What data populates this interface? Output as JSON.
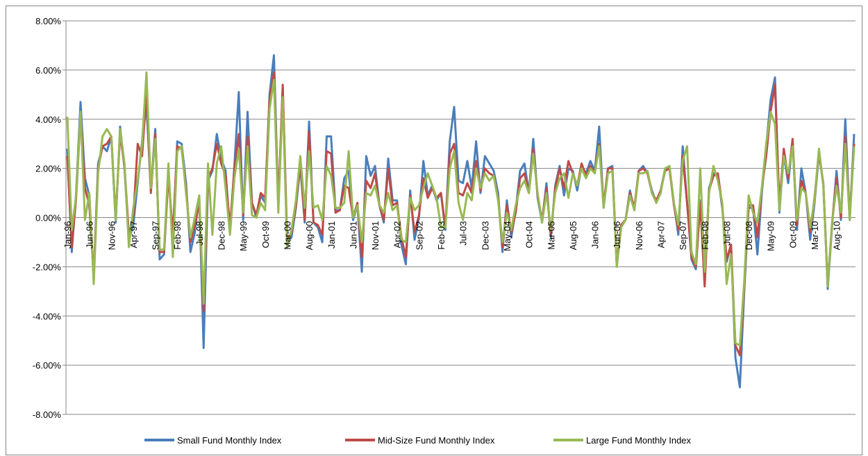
{
  "chart_data": {
    "type": "line",
    "categories": [
      "Jan-96",
      null,
      null,
      null,
      null,
      "Jun-96",
      null,
      null,
      null,
      null,
      "Nov-96",
      null,
      null,
      null,
      null,
      "Apr-97",
      null,
      null,
      null,
      null,
      "Sep-97",
      null,
      null,
      null,
      null,
      "Feb-98",
      null,
      null,
      null,
      null,
      "Jul-98",
      null,
      null,
      null,
      null,
      "Dec-98",
      null,
      null,
      null,
      null,
      "May-99",
      null,
      null,
      null,
      null,
      "Oct-99",
      null,
      null,
      null,
      null,
      "Mar-00",
      null,
      null,
      null,
      null,
      "Aug-00",
      null,
      null,
      null,
      null,
      "Jan-01",
      null,
      null,
      null,
      null,
      "Jun-01",
      null,
      null,
      null,
      null,
      "Nov-01",
      null,
      null,
      null,
      null,
      "Apr-02",
      null,
      null,
      null,
      null,
      "Sep-02",
      null,
      null,
      null,
      null,
      "Feb-03",
      null,
      null,
      null,
      null,
      "Jul-03",
      null,
      null,
      null,
      null,
      "Dec-03",
      null,
      null,
      null,
      null,
      "May-04",
      null,
      null,
      null,
      null,
      "Oct-04",
      null,
      null,
      null,
      null,
      "Mar-05",
      null,
      null,
      null,
      null,
      "Aug-05",
      null,
      null,
      null,
      null,
      "Jan-06",
      null,
      null,
      null,
      null,
      "Jun-06",
      null,
      null,
      null,
      null,
      "Nov-06",
      null,
      null,
      null,
      null,
      "Apr-07",
      null,
      null,
      null,
      null,
      "Sep-07",
      null,
      null,
      null,
      null,
      "Feb-08",
      null,
      null,
      null,
      null,
      "Jul-08",
      null,
      null,
      null,
      null,
      "Dec-08",
      null,
      null,
      null,
      null,
      "May-09",
      null,
      null,
      null,
      null,
      "Oct-09",
      null,
      null,
      null,
      null,
      "Mar-10",
      null,
      null,
      null,
      null,
      "Aug-10",
      null,
      null,
      null,
      null
    ],
    "series": [
      {
        "name": "Small Fund Monthly Index",
        "color": "#4a7ebb",
        "values": [
          2.8,
          -1.4,
          1.0,
          4.7,
          1.6,
          0.9,
          -2.5,
          2.2,
          2.9,
          2.7,
          3.3,
          -0.2,
          3.7,
          2.0,
          -0.9,
          -0.3,
          1.4,
          3.1,
          4.6,
          1.1,
          3.6,
          -1.7,
          -1.5,
          1.9,
          -0.9,
          3.1,
          3.0,
          1.4,
          -1.4,
          -0.6,
          0.9,
          -5.3,
          1.5,
          1.9,
          3.4,
          2.4,
          1.9,
          -0.6,
          2.1,
          5.1,
          -0.1,
          4.3,
          0.6,
          0.0,
          0.9,
          0.6,
          5.0,
          6.6,
          0.4,
          5.3,
          -1.0,
          -0.8,
          0.4,
          2.1,
          -0.2,
          3.9,
          -0.2,
          -0.4,
          -1.0,
          3.3,
          3.3,
          0.3,
          0.3,
          1.6,
          1.9,
          -0.1,
          0.5,
          -2.2,
          2.5,
          1.7,
          2.1,
          0.5,
          -0.2,
          2.4,
          0.7,
          0.7,
          -1.1,
          -1.9,
          1.1,
          -0.9,
          0.0,
          2.3,
          0.9,
          1.3,
          0.7,
          1.0,
          -0.5,
          3.1,
          4.5,
          1.5,
          1.4,
          2.3,
          1.2,
          3.1,
          1.0,
          2.5,
          2.2,
          1.9,
          1.0,
          -1.4,
          0.7,
          -0.8,
          0.3,
          1.9,
          2.2,
          1.0,
          3.2,
          0.8,
          -0.2,
          1.4,
          -0.8,
          1.3,
          2.1,
          0.9,
          2.0,
          1.9,
          1.1,
          2.1,
          1.8,
          2.3,
          1.9,
          3.7,
          0.4,
          2.0,
          2.1,
          -2.0,
          -0.3,
          -0.1,
          1.1,
          0.3,
          1.9,
          2.1,
          1.8,
          1.1,
          0.6,
          1.1,
          2.0,
          2.0,
          0.6,
          -0.7,
          2.9,
          0.6,
          -1.7,
          -2.1,
          0.7,
          -2.7,
          1.2,
          1.8,
          1.7,
          0.4,
          -1.8,
          -1.1,
          -5.7,
          -6.9,
          -3.0,
          0.4,
          0.4,
          -1.5,
          1.0,
          2.9,
          4.8,
          5.7,
          0.2,
          2.6,
          1.4,
          3.1,
          -0.5,
          2.0,
          1.0,
          -0.9,
          0.6,
          2.6,
          1.4,
          -2.9,
          -0.3,
          1.9,
          -0.1,
          4.0,
          -0.1,
          3.4
        ]
      },
      {
        "name": "Mid-Size Fund Monthly Index",
        "color": "#be4b48",
        "values": [
          2.5,
          -1.2,
          0.8,
          4.2,
          1.2,
          0.5,
          -2.4,
          2.0,
          2.9,
          3.0,
          3.3,
          0.0,
          3.4,
          2.1,
          -0.7,
          0.0,
          3.0,
          2.5,
          5.1,
          1.0,
          3.4,
          -1.4,
          -1.4,
          1.7,
          -0.7,
          2.9,
          2.8,
          1.2,
          -1.0,
          -0.3,
          0.6,
          -3.8,
          1.6,
          2.0,
          3.0,
          2.2,
          1.7,
          -0.4,
          2.0,
          3.4,
          0.1,
          3.3,
          0.6,
          0.1,
          1.0,
          0.8,
          4.8,
          5.9,
          0.5,
          5.4,
          -0.9,
          -0.6,
          0.5,
          2.3,
          -0.1,
          3.5,
          -0.2,
          -0.3,
          -0.7,
          2.7,
          2.6,
          0.2,
          0.3,
          1.3,
          1.2,
          0.0,
          0.6,
          -1.6,
          1.5,
          1.2,
          1.8,
          0.5,
          -0.1,
          2.0,
          0.5,
          0.6,
          -0.8,
          -1.6,
          0.9,
          -0.6,
          0.1,
          1.6,
          0.8,
          1.2,
          0.8,
          1.0,
          -0.4,
          2.6,
          3.0,
          1.0,
          0.9,
          1.4,
          1.0,
          2.3,
          1.1,
          2.0,
          1.8,
          1.7,
          0.8,
          -1.2,
          0.5,
          -0.6,
          0.2,
          1.6,
          1.8,
          1.0,
          2.8,
          0.9,
          -0.1,
          1.2,
          -0.7,
          1.2,
          2.0,
          1.2,
          2.3,
          1.8,
          1.3,
          2.2,
          1.7,
          2.1,
          1.8,
          3.0,
          0.5,
          2.0,
          2.0,
          -1.9,
          -0.3,
          -0.1,
          1.0,
          0.4,
          1.9,
          2.0,
          1.8,
          1.0,
          0.7,
          1.1,
          1.9,
          2.0,
          0.5,
          -0.5,
          2.5,
          0.6,
          -1.6,
          -2.0,
          0.6,
          -2.8,
          1.1,
          1.7,
          1.8,
          0.5,
          -1.7,
          -1.1,
          -5.2,
          -5.6,
          -2.8,
          0.5,
          0.5,
          -0.8,
          1.2,
          2.5,
          4.3,
          5.4,
          0.5,
          2.8,
          1.6,
          3.2,
          -0.3,
          1.5,
          1.0,
          -0.6,
          0.8,
          2.7,
          1.3,
          -2.7,
          -0.2,
          1.6,
          0.0,
          3.3,
          0.0,
          3.0
        ]
      },
      {
        "name": "Large Fund Monthly Index",
        "color": "#98b954",
        "values": [
          4.1,
          -0.5,
          0.9,
          4.3,
          -0.1,
          1.0,
          -2.7,
          1.8,
          3.3,
          3.6,
          3.3,
          -0.1,
          3.6,
          2.2,
          -1.2,
          0.4,
          1.5,
          3.0,
          5.9,
          1.2,
          3.2,
          -1.3,
          -1.3,
          2.2,
          -1.6,
          2.7,
          2.9,
          1.0,
          -0.8,
          0.0,
          0.9,
          -3.5,
          2.2,
          -0.7,
          2.2,
          2.9,
          1.2,
          -0.7,
          1.6,
          2.8,
          0.2,
          2.9,
          0.1,
          0.0,
          0.6,
          0.3,
          4.4,
          5.6,
          0.2,
          4.9,
          -1.2,
          -0.5,
          0.7,
          2.5,
          0.4,
          2.7,
          0.4,
          0.5,
          -0.1,
          2.1,
          1.7,
          0.4,
          0.4,
          0.6,
          2.7,
          0.0,
          0.5,
          -1.0,
          1.0,
          0.9,
          1.3,
          0.5,
          0.2,
          1.0,
          0.3,
          0.5,
          -0.9,
          -1.0,
          0.8,
          0.3,
          0.5,
          1.2,
          1.8,
          1.3,
          0.8,
          -0.4,
          -0.4,
          2.0,
          2.7,
          0.6,
          -0.1,
          1.0,
          0.7,
          2.0,
          1.2,
          1.8,
          1.5,
          1.7,
          0.7,
          -1.0,
          0.2,
          -0.5,
          0.5,
          1.2,
          1.5,
          1.0,
          2.6,
          1.0,
          -0.2,
          1.0,
          -0.5,
          1.0,
          1.6,
          1.8,
          0.8,
          1.8,
          1.3,
          2.0,
          1.6,
          2.0,
          1.8,
          2.9,
          0.4,
          1.8,
          1.9,
          -2.0,
          -0.4,
          -0.1,
          0.9,
          0.3,
          1.8,
          1.8,
          1.9,
          1.0,
          0.6,
          1.0,
          2.0,
          2.1,
          0.6,
          -0.3,
          2.3,
          2.9,
          -1.4,
          -1.9,
          2.0,
          -2.2,
          1.0,
          2.1,
          1.5,
          0.6,
          -2.7,
          -1.5,
          -5.1,
          -5.2,
          -2.6,
          0.9,
          0.2,
          -0.2,
          1.2,
          3.0,
          4.3,
          3.8,
          0.3,
          2.5,
          1.8,
          2.9,
          -0.1,
          1.2,
          1.0,
          -0.4,
          0.7,
          2.8,
          1.3,
          -2.8,
          -0.2,
          1.3,
          0.2,
          3.0,
          -0.1,
          2.9
        ]
      }
    ],
    "ylim": [
      -8,
      8
    ],
    "yticks": [
      {
        "value": -8,
        "label": "-8.00%"
      },
      {
        "value": -6,
        "label": "-6.00%"
      },
      {
        "value": -4,
        "label": "-4.00%"
      },
      {
        "value": -2,
        "label": "-2.00%"
      },
      {
        "value": 0,
        "label": "0.00%"
      },
      {
        "value": 2,
        "label": "2.00%"
      },
      {
        "value": 4,
        "label": "4.00%"
      },
      {
        "value": 6,
        "label": "6.00%"
      },
      {
        "value": 8,
        "label": "8.00%"
      }
    ],
    "grid": true,
    "legend": "bottom"
  }
}
